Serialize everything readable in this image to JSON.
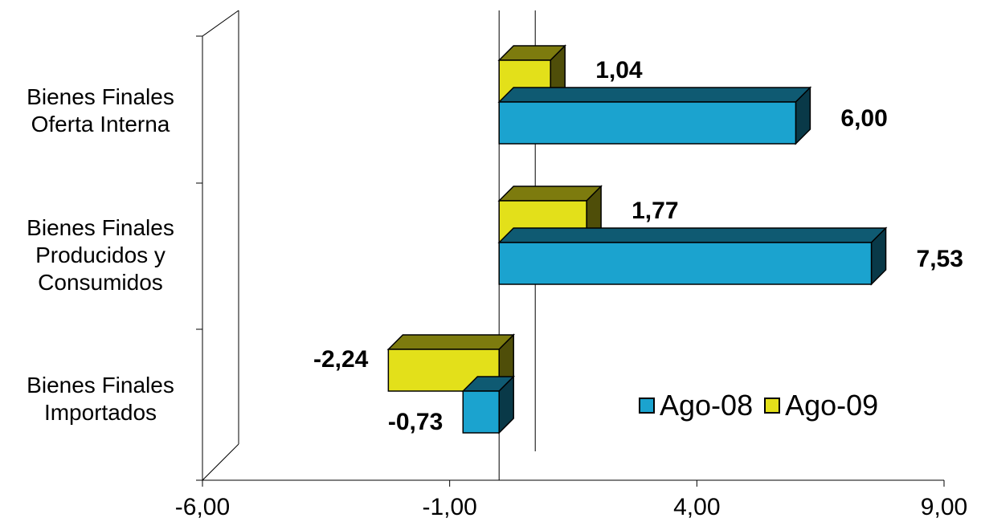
{
  "chart_data": {
    "type": "bar",
    "orientation": "horizontal",
    "style": "3d-clustered",
    "categories": [
      "Bienes Finales\nOferta Interna",
      "Bienes Finales\nProducidos y\nConsumidos",
      "Bienes Finales\nImportados"
    ],
    "series": [
      {
        "name": "Ago-08",
        "values": [
          6.0,
          7.53,
          -0.73
        ],
        "labels": [
          "6,00",
          "7,53",
          "-0,73"
        ],
        "color": "#1BA3CF"
      },
      {
        "name": "Ago-09",
        "values": [
          1.04,
          1.77,
          -2.24
        ],
        "labels": [
          "1,04",
          "1,77",
          "-2,24"
        ],
        "color": "#E3E01A"
      }
    ],
    "xlim": [
      -6,
      9
    ],
    "xticks": [
      -6,
      -1,
      4,
      9
    ],
    "xtick_labels": [
      "-6,00",
      "-1,00",
      "4,00",
      "9,00"
    ],
    "title": "",
    "xlabel": "",
    "ylabel": "",
    "legend_position": "bottom-right",
    "grid": false
  }
}
